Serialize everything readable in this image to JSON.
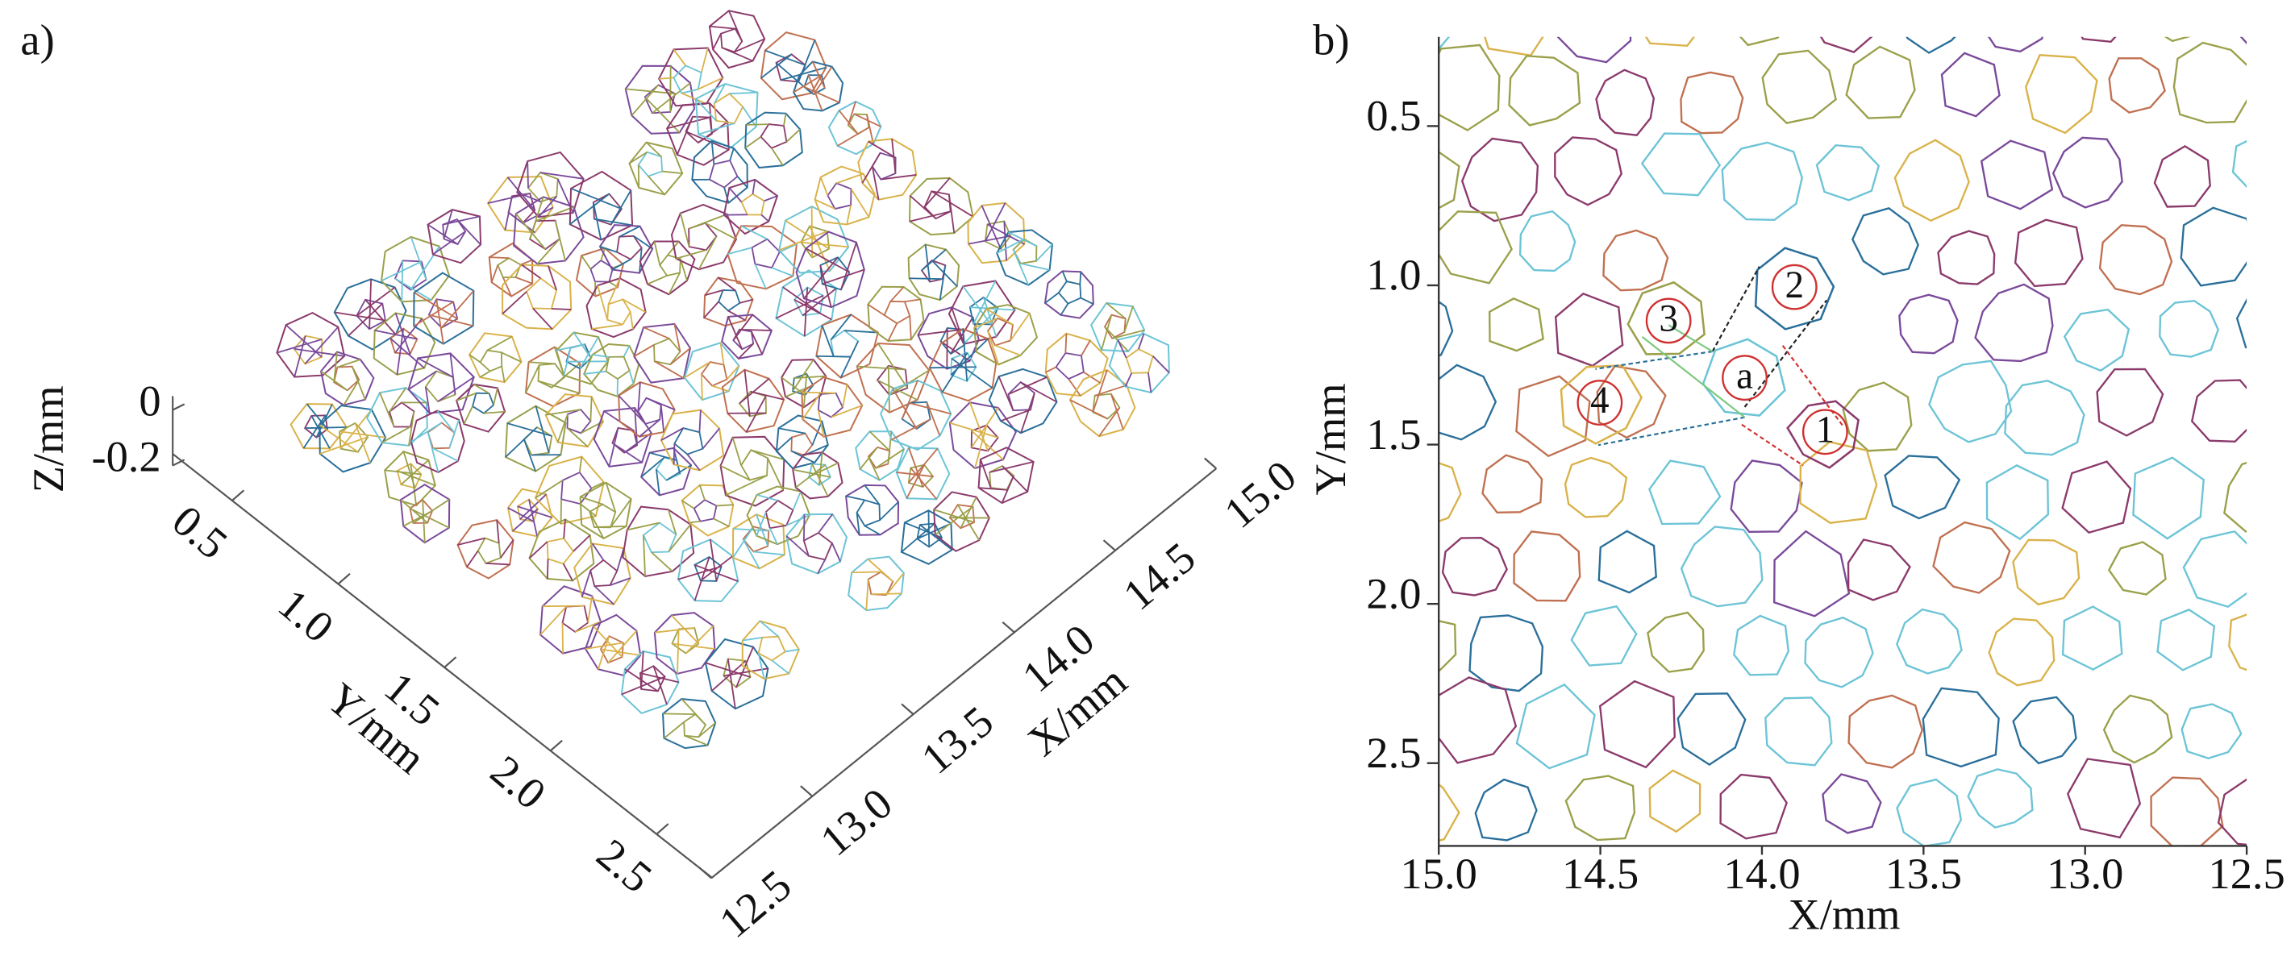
{
  "chart_data": [
    {
      "type": "wireframe3d",
      "panel_label": "a)",
      "xlabel": "X/mm",
      "ylabel": "Y/mm",
      "zlabel": "Z/mm",
      "xlim": [
        12.5,
        15.0
      ],
      "ylim": [
        0.22,
        2.76
      ],
      "zlim": [
        -0.2,
        0.05
      ],
      "xticks": [
        {
          "value": 12.5,
          "label": "12.5"
        },
        {
          "value": 13,
          "label": "13.0"
        },
        13.5,
        {
          "value": 14,
          "label": "14.0"
        },
        14.5,
        {
          "value": 15,
          "label": "15.0"
        }
      ],
      "yticks": [
        0.5,
        {
          "value": 1,
          "label": "1.0"
        },
        1.5,
        {
          "value": 2,
          "label": "2.0"
        },
        2.5
      ],
      "zticks": [
        0,
        -0.2
      ]
    },
    {
      "type": "outline",
      "panel_label": "b)",
      "xlabel": "X/mm",
      "ylabel": "Y/mm",
      "xlim": [
        12.5,
        15.0
      ],
      "x_reversed": true,
      "ylim": [
        0.22,
        2.76
      ],
      "y_inverted": true,
      "xticks": [
        {
          "value": 15,
          "label": "15.0"
        },
        14.5,
        {
          "value": 14,
          "label": "14.0"
        },
        13.5,
        {
          "value": 13,
          "label": "13.0"
        },
        12.5
      ],
      "yticks": [
        0.5,
        {
          "value": 1,
          "label": "1.0"
        },
        1.5,
        {
          "value": 2,
          "label": "2.0"
        },
        2.5
      ],
      "annotations": [
        "2",
        "3",
        "a",
        "4",
        "1"
      ]
    }
  ]
}
